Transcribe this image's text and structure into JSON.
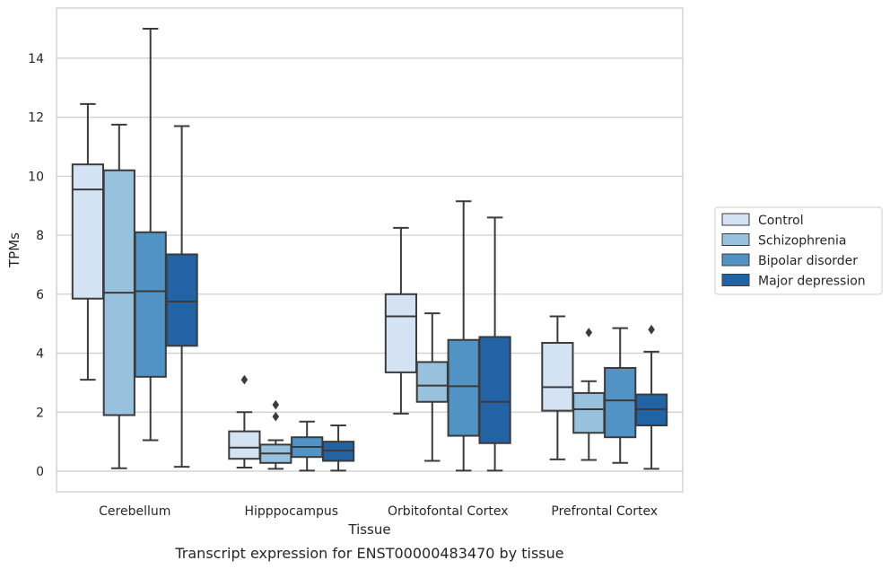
{
  "chart_data": {
    "type": "box",
    "title": "Transcript expression for ENST00000483470 by tissue",
    "xlabel": "Tissue",
    "ylabel": "TPMs",
    "ylim": [
      -0.7,
      15.7
    ],
    "yticks": [
      0,
      2,
      4,
      6,
      8,
      10,
      12,
      14
    ],
    "grid": "horizontal",
    "legend_position": "right",
    "categories": [
      "Cerebellum",
      "Hipppocampus",
      "Orbitofontal Cortex",
      "Prefrontal Cortex"
    ],
    "series": [
      {
        "name": "Control",
        "color": "#d4e3f3",
        "boxes": [
          {
            "whislo": 3.1,
            "q1": 5.85,
            "med": 9.55,
            "q3": 10.4,
            "whishi": 12.45,
            "fliers": []
          },
          {
            "whislo": 0.12,
            "q1": 0.42,
            "med": 0.8,
            "q3": 1.35,
            "whishi": 2.0,
            "fliers": [
              3.1
            ]
          },
          {
            "whislo": 1.95,
            "q1": 3.35,
            "med": 5.25,
            "q3": 6.0,
            "whishi": 8.25,
            "fliers": []
          },
          {
            "whislo": 0.4,
            "q1": 2.05,
            "med": 2.85,
            "q3": 4.35,
            "whishi": 5.25,
            "fliers": []
          }
        ]
      },
      {
        "name": "Schizophrenia",
        "color": "#98c1de",
        "boxes": [
          {
            "whislo": 0.1,
            "q1": 1.9,
            "med": 6.05,
            "q3": 10.2,
            "whishi": 11.75,
            "fliers": []
          },
          {
            "whislo": 0.08,
            "q1": 0.28,
            "med": 0.6,
            "q3": 0.9,
            "whishi": 1.05,
            "fliers": [
              2.25,
              1.85
            ]
          },
          {
            "whislo": 0.35,
            "q1": 2.35,
            "med": 2.9,
            "q3": 3.7,
            "whishi": 5.35,
            "fliers": []
          },
          {
            "whislo": 0.38,
            "q1": 1.3,
            "med": 2.1,
            "q3": 2.65,
            "whishi": 3.05,
            "fliers": [
              4.7
            ]
          }
        ]
      },
      {
        "name": "Bipolar disorder",
        "color": "#5193c4",
        "boxes": [
          {
            "whislo": 1.05,
            "q1": 3.2,
            "med": 6.1,
            "q3": 8.1,
            "whishi": 15.0,
            "fliers": []
          },
          {
            "whislo": 0.02,
            "q1": 0.48,
            "med": 0.82,
            "q3": 1.15,
            "whishi": 1.68,
            "fliers": []
          },
          {
            "whislo": 0.02,
            "q1": 1.2,
            "med": 2.88,
            "q3": 4.45,
            "whishi": 9.15,
            "fliers": []
          },
          {
            "whislo": 0.28,
            "q1": 1.15,
            "med": 2.4,
            "q3": 3.5,
            "whishi": 4.85,
            "fliers": []
          }
        ]
      },
      {
        "name": "Major depression",
        "color": "#2263a6",
        "boxes": [
          {
            "whislo": 0.15,
            "q1": 4.25,
            "med": 5.75,
            "q3": 7.35,
            "whishi": 11.7,
            "fliers": []
          },
          {
            "whislo": 0.02,
            "q1": 0.35,
            "med": 0.7,
            "q3": 1.0,
            "whishi": 1.55,
            "fliers": []
          },
          {
            "whislo": 0.02,
            "q1": 0.95,
            "med": 2.35,
            "q3": 4.55,
            "whishi": 8.6,
            "fliers": []
          },
          {
            "whislo": 0.08,
            "q1": 1.55,
            "med": 2.1,
            "q3": 2.6,
            "whishi": 4.05,
            "fliers": [
              4.8
            ]
          }
        ]
      }
    ]
  },
  "style": {
    "grid_color": "#cccccc",
    "frame_color": "#cccccc",
    "line_color": "#3b3b3b"
  }
}
